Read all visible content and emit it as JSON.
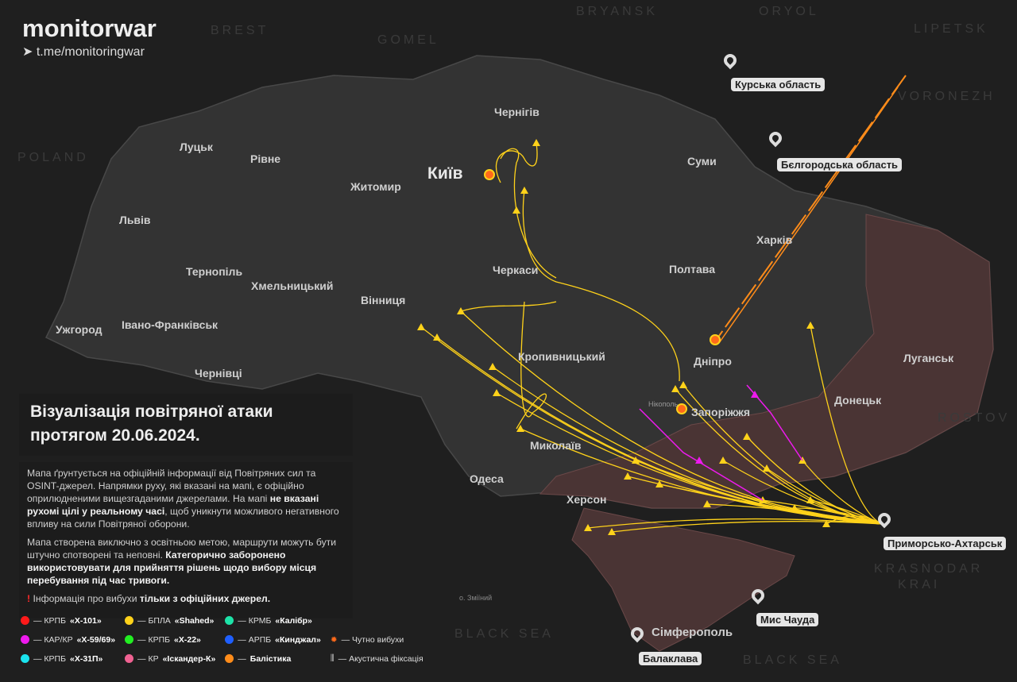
{
  "brand": {
    "name": "monitorwar",
    "telegram": "t.me/monitoringwar"
  },
  "title": {
    "line1": "Візуалізація повітряної атаки",
    "line2": "протягом 20.06.2024."
  },
  "info": {
    "p1_a": "Мапа ґрунтується на офіційній інформації від Повітряних сил та OSINT-джерел. Напрямки руху, які вказані на мапі, є офіційно оприлюдненими вищезгаданими джерелами. На мапі ",
    "p1_b": "не вказані рухомі цілі у реальному часі",
    "p1_c": ", щоб уникнути можливого негативного впливу на сили Повітряної оборони.",
    "p2_a": "Мапа створена виключно з освітньою метою, маршрути можуть бути штучно спотворені та неповні. ",
    "p2_b": "Категорично заборонено використовувати для прийняття рішень щодо вибору місця перебування під час тривоги.",
    "p3_icon": "exclamation-icon",
    "p3_a": "Інформація про вибухи ",
    "p3_b": "тільки з офіційних джерел."
  },
  "legend": [
    {
      "prefix": "— КРПБ ",
      "name": "«Х-101»",
      "color": "#ff1a1a"
    },
    {
      "prefix": "— БПЛА ",
      "name": "«Shahed»",
      "color": "#ffd21a"
    },
    {
      "prefix": "— КРМБ ",
      "name": "«Калібр»",
      "color": "#1de3a8"
    },
    {
      "prefix": "— КАР/КР ",
      "name": "«Х-59/69»",
      "color": "#ee1aee"
    },
    {
      "prefix": "— КРПБ ",
      "name": "«Х-22»",
      "color": "#22ee22"
    },
    {
      "prefix": "— АРПБ ",
      "name": "«Кинджал»",
      "color": "#1f5fff"
    },
    {
      "prefix": "— КРПБ ",
      "name": "«Х-31П»",
      "color": "#1ae3ee"
    },
    {
      "prefix": "— КР ",
      "name": "«Іскандер-К»",
      "color": "#f06292"
    },
    {
      "prefix": "— ",
      "name": "Балістика",
      "color": "#ff8c1a"
    },
    {
      "prefix": "— Чутно вибухи",
      "name": "",
      "icon": "explosion-icon"
    },
    {
      "prefix": "— Акустична фіксація",
      "name": "",
      "icon": "sound-wave-icon"
    }
  ],
  "cities": [
    "Київ",
    "Чернігів",
    "Суми",
    "Житомир",
    "Луцьк",
    "Рівне",
    "Львів",
    "Тернопіль",
    "Хмельницький",
    "Вінниця",
    "Черкаси",
    "Полтава",
    "Харків",
    "Ужгород",
    "Івано-Франківськ",
    "Чернівці",
    "Кропивницький",
    "Дніпро",
    "Луганськ",
    "Запоріжжя",
    "Донецьк",
    "Миколаїв",
    "Одеса",
    "Херсон",
    "Сімферополь",
    "Нікополь",
    "о. Зміїний"
  ],
  "regions": [
    "BRYANSK",
    "ORYOL",
    "LIPETSK",
    "BREST",
    "GOMEL",
    "VORONEZH",
    "POLAND",
    "ROSTOV",
    "KRASNODAR",
    "KRAI",
    "BLACK SEA",
    "BLACK SEA"
  ],
  "launch_points": [
    "Курська область",
    "Бєлгородська область",
    "Приморсько-Ахтарськ",
    "Мис Чауда",
    "Балаклава"
  ],
  "colors": {
    "shahed": "#ffd21a",
    "kh59": "#ee1aee",
    "ballistic": "#ff8c1a",
    "occupied": "#4a3434",
    "land": "#333333"
  }
}
